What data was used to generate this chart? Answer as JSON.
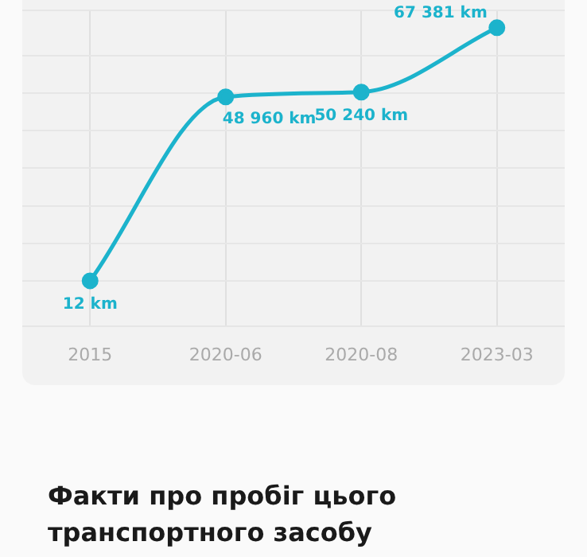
{
  "chart_data": {
    "type": "line",
    "categories": [
      "2015",
      "2020-06",
      "2020-08",
      "2023-03"
    ],
    "series": [
      {
        "color": "#1cb3cc",
        "values": [
          12,
          48960,
          50240,
          67381
        ],
        "value_labels": [
          "12 km",
          "48 960 km",
          "50 240 km",
          "67 381 km"
        ]
      }
    ],
    "ylim": [
      -12000,
      72000
    ],
    "grid": true,
    "tick_labels": "x",
    "marker": "circle",
    "line_style": "solid",
    "annotations": [
      "Факти про пробіг цього транспортного засобу"
    ]
  }
}
